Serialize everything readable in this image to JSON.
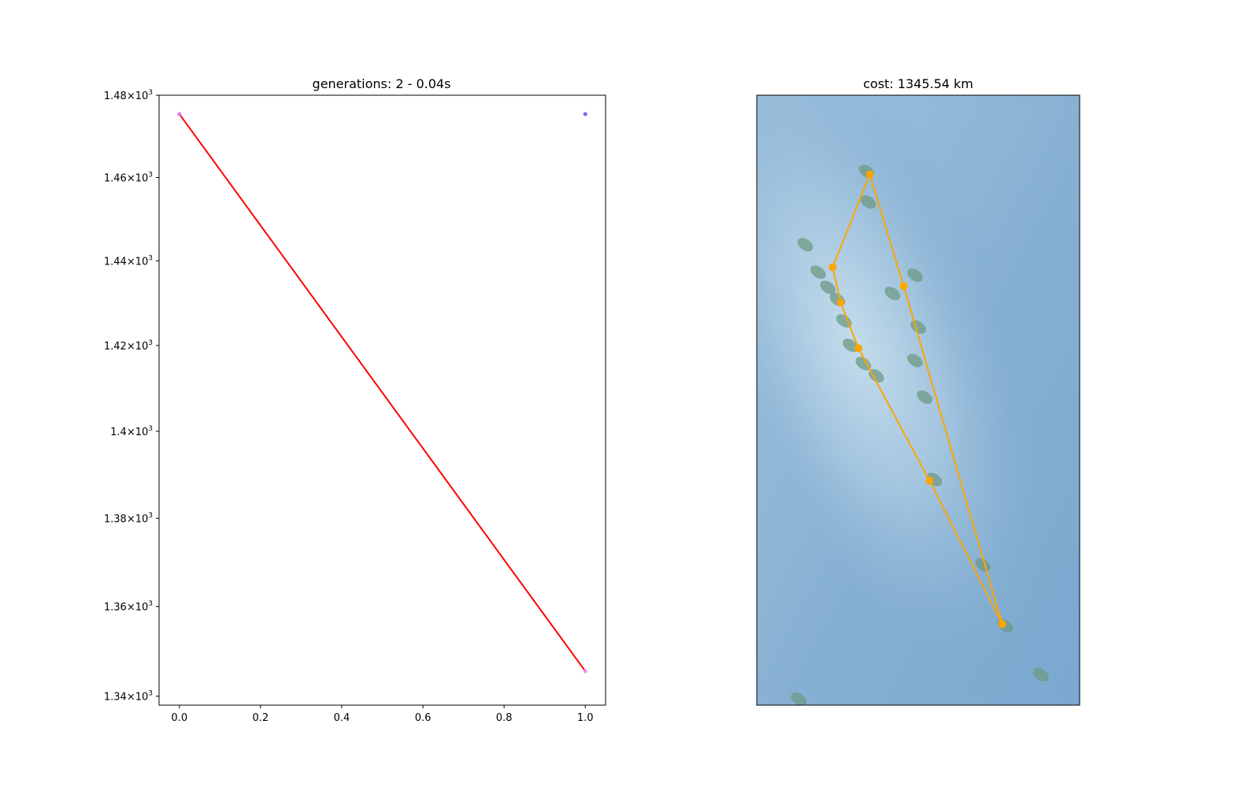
{
  "chart_data": [
    {
      "type": "line",
      "title": "generations: 2 - 0.04s",
      "xlabel": "",
      "ylabel": "",
      "yscale": "log",
      "xlim": [
        -0.05,
        1.05
      ],
      "ylim": [
        1338,
        1480
      ],
      "x_ticks": [
        0.0,
        0.2,
        0.4,
        0.6,
        0.8,
        1.0
      ],
      "x_tick_labels": [
        "0.0",
        "0.2",
        "0.4",
        "0.6",
        "0.8",
        "1.0"
      ],
      "y_ticks": [
        1340,
        1360,
        1380,
        1400,
        1420,
        1440,
        1460,
        1480
      ],
      "y_tick_labels": [
        {
          "mantissa": "1.34",
          "base": "10",
          "exp": "3"
        },
        {
          "mantissa": "1.36",
          "base": "10",
          "exp": "3"
        },
        {
          "mantissa": "1.38",
          "base": "10",
          "exp": "3"
        },
        {
          "mantissa": "1.4",
          "base": "10",
          "exp": "3"
        },
        {
          "mantissa": "1.42",
          "base": "10",
          "exp": "3"
        },
        {
          "mantissa": "1.44",
          "base": "10",
          "exp": "3"
        },
        {
          "mantissa": "1.46",
          "base": "10",
          "exp": "3"
        },
        {
          "mantissa": "1.48",
          "base": "10",
          "exp": "3"
        }
      ],
      "grid": false,
      "series": [
        {
          "x": [
            0,
            1
          ],
          "y": [
            1475.4,
            1345.54
          ],
          "color": "#ff0000",
          "kind": "line"
        },
        {
          "x": [
            0,
            1
          ],
          "y": [
            1475.4,
            1475.4
          ],
          "color": "#5555ee",
          "kind": "scatter"
        },
        {
          "x": [
            0,
            1
          ],
          "y": [
            1475.4,
            1345.54
          ],
          "color": "#ee88ee",
          "kind": "scatter"
        }
      ]
    },
    {
      "type": "map",
      "title": "cost: 1345.54 km",
      "route_color": "#ffa500",
      "background": [
        "#9ec2dd",
        "#86b0d3",
        "#7aa8cf"
      ],
      "land_color": "#6d9a86",
      "route": [
        {
          "lon": 0.35,
          "lat": 0.87
        },
        {
          "lon": 0.235,
          "lat": 0.718
        },
        {
          "lon": 0.26,
          "lat": 0.66
        },
        {
          "lon": 0.315,
          "lat": 0.585
        },
        {
          "lon": 0.535,
          "lat": 0.368
        },
        {
          "lon": 0.76,
          "lat": 0.133
        },
        {
          "lon": 0.455,
          "lat": 0.687
        },
        {
          "lon": 0.35,
          "lat": 0.87
        }
      ],
      "route_points": [
        {
          "lon": 0.35,
          "lat": 0.87
        },
        {
          "lon": 0.235,
          "lat": 0.718
        },
        {
          "lon": 0.26,
          "lat": 0.66
        },
        {
          "lon": 0.315,
          "lat": 0.585
        },
        {
          "lon": 0.535,
          "lat": 0.368
        },
        {
          "lon": 0.76,
          "lat": 0.133
        },
        {
          "lon": 0.455,
          "lat": 0.687
        }
      ],
      "islands": [
        {
          "lon": 0.34,
          "lat": 0.875
        },
        {
          "lon": 0.345,
          "lat": 0.825
        },
        {
          "lon": 0.15,
          "lat": 0.755
        },
        {
          "lon": 0.19,
          "lat": 0.71
        },
        {
          "lon": 0.22,
          "lat": 0.685
        },
        {
          "lon": 0.25,
          "lat": 0.665
        },
        {
          "lon": 0.27,
          "lat": 0.63
        },
        {
          "lon": 0.29,
          "lat": 0.59
        },
        {
          "lon": 0.33,
          "lat": 0.56
        },
        {
          "lon": 0.37,
          "lat": 0.54
        },
        {
          "lon": 0.42,
          "lat": 0.675
        },
        {
          "lon": 0.49,
          "lat": 0.705
        },
        {
          "lon": 0.5,
          "lat": 0.62
        },
        {
          "lon": 0.49,
          "lat": 0.565
        },
        {
          "lon": 0.52,
          "lat": 0.505
        },
        {
          "lon": 0.55,
          "lat": 0.37
        },
        {
          "lon": 0.7,
          "lat": 0.23
        },
        {
          "lon": 0.77,
          "lat": 0.13
        },
        {
          "lon": 0.88,
          "lat": 0.05
        },
        {
          "lon": 0.13,
          "lat": 0.01
        }
      ]
    }
  ]
}
